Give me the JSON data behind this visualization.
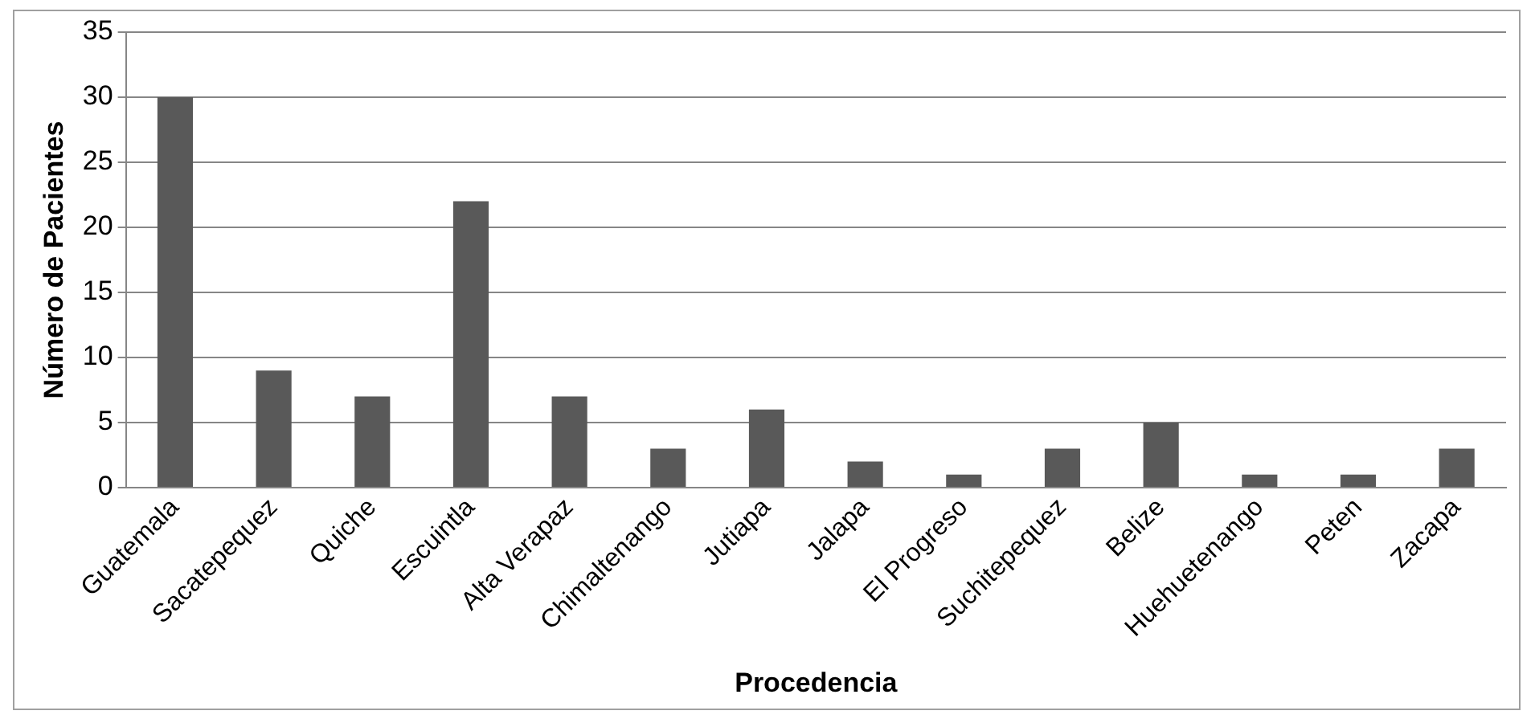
{
  "chart_data": {
    "type": "bar",
    "xlabel": "Procedencia",
    "ylabel": "Número de Pacientes",
    "categories": [
      "Guatemala",
      "Sacatepequez",
      "Quiche",
      "Escuintla",
      "Alta Verapaz",
      "Chimaltenango",
      "Jutiapa",
      "Jalapa",
      "El Progreso",
      "Suchitepequez",
      "Belize",
      "Huehuetenango",
      "Peten",
      "Zacapa"
    ],
    "values": [
      30,
      9,
      7,
      22,
      7,
      3,
      6,
      2,
      1,
      3,
      5,
      1,
      1,
      3
    ],
    "color": "#595959",
    "ylim": [
      0,
      35
    ],
    "yticks": [
      0,
      5,
      10,
      15,
      20,
      25,
      30,
      35
    ],
    "grid": "y",
    "legend": false
  }
}
